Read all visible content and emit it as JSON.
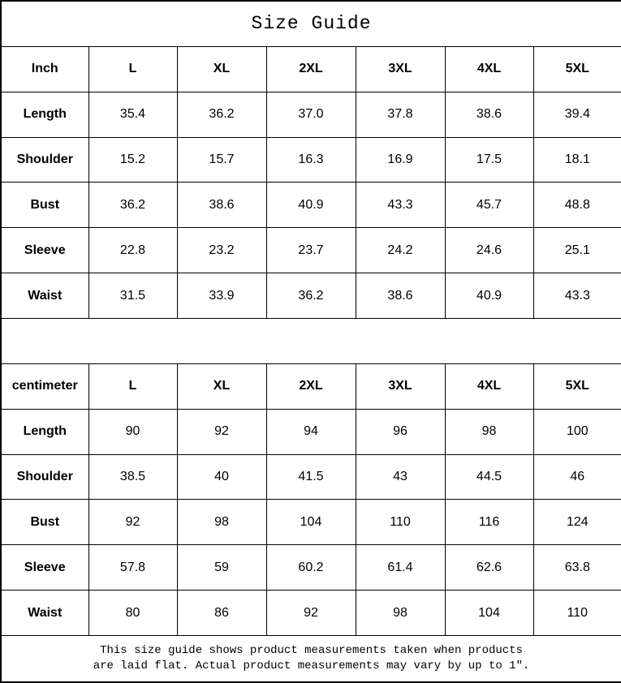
{
  "title": "Size Guide",
  "footer": {
    "line1": "This size guide shows product measurements taken when products",
    "line2": "are laid flat. Actual product measurements may vary by up to 1″."
  },
  "colors": {
    "border": "#000000",
    "background": "#ffffff",
    "text": "#000000"
  },
  "chart_data": [
    {
      "type": "table",
      "title": "Size Guide",
      "unit": "Inch",
      "columns": [
        "Inch",
        "L",
        "XL",
        "2XL",
        "3XL",
        "4XL",
        "5XL"
      ],
      "rows": [
        [
          "Length",
          "35.4",
          "36.2",
          "37.0",
          "37.8",
          "38.6",
          "39.4"
        ],
        [
          "Shoulder",
          "15.2",
          "15.7",
          "16.3",
          "16.9",
          "17.5",
          "18.1"
        ],
        [
          "Bust",
          "36.2",
          "38.6",
          "40.9",
          "43.3",
          "45.7",
          "48.8"
        ],
        [
          "Sleeve",
          "22.8",
          "23.2",
          "23.7",
          "24.2",
          "24.6",
          "25.1"
        ],
        [
          "Waist",
          "31.5",
          "33.9",
          "36.2",
          "38.6",
          "40.9",
          "43.3"
        ]
      ]
    },
    {
      "type": "table",
      "title": "Size Guide",
      "unit": "centimeter",
      "columns": [
        "centimeter",
        "L",
        "XL",
        "2XL",
        "3XL",
        "4XL",
        "5XL"
      ],
      "rows": [
        [
          "Length",
          "90",
          "92",
          "94",
          "96",
          "98",
          "100"
        ],
        [
          "Shoulder",
          "38.5",
          "40",
          "41.5",
          "43",
          "44.5",
          "46"
        ],
        [
          "Bust",
          "92",
          "98",
          "104",
          "110",
          "116",
          "124"
        ],
        [
          "Sleeve",
          "57.8",
          "59",
          "60.2",
          "61.4",
          "62.6",
          "63.8"
        ],
        [
          "Waist",
          "80",
          "86",
          "92",
          "98",
          "104",
          "110"
        ]
      ]
    }
  ]
}
